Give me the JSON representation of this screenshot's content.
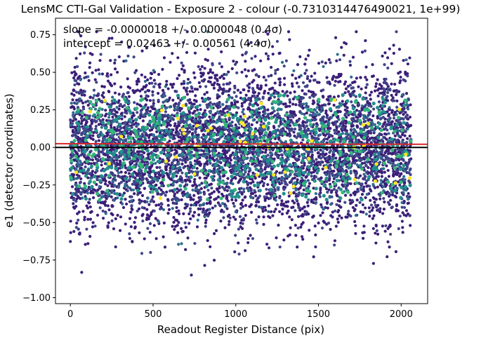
{
  "chart_data": {
    "type": "scatter",
    "title": "LensMC CTI-Gal Validation - Exposure 2 - colour (-0.7310314476490021, 1e+99)",
    "xlabel": "Readout Register Distance (pix)",
    "ylabel": "e1 (detector coordinates)",
    "xlim": [
      -90,
      2160
    ],
    "ylim": [
      -1.04,
      0.86
    ],
    "xticks": [
      0,
      500,
      1000,
      1500,
      2000
    ],
    "yticks": [
      -1.0,
      -0.75,
      -0.5,
      -0.25,
      0.0,
      0.25,
      0.5,
      0.75
    ],
    "xtick_labels": [
      "0",
      "500",
      "1000",
      "1500",
      "2000"
    ],
    "ytick_labels": [
      "−1.00",
      "−0.75",
      "−0.50",
      "−0.25",
      "0.00",
      "0.25",
      "0.50",
      "0.75"
    ],
    "grid": false,
    "annotations": [
      "slope = -0.0000018 +/- 0.0000048 (0.4σ)",
      "intercept = 0.02463 +/- 0.00561 (4.4σ)"
    ],
    "points": {
      "count": 6500,
      "x_range": [
        0,
        2060
      ],
      "y_center": 0.0,
      "y_spread": 0.25,
      "y_extremes": [
        -0.94,
        0.77
      ],
      "colormap": "viridis",
      "note_colors": [
        "#3b1f78",
        "#404688",
        "#2f6c8e",
        "#21918c",
        "#35b779",
        "#fde725"
      ]
    },
    "lines": [
      {
        "name": "fit",
        "slope": -1.8e-06,
        "intercept": 0.02463,
        "color": "#d62728"
      },
      {
        "name": "zero",
        "slope": 0.0,
        "intercept": 0.0,
        "color": "#000000"
      }
    ]
  }
}
